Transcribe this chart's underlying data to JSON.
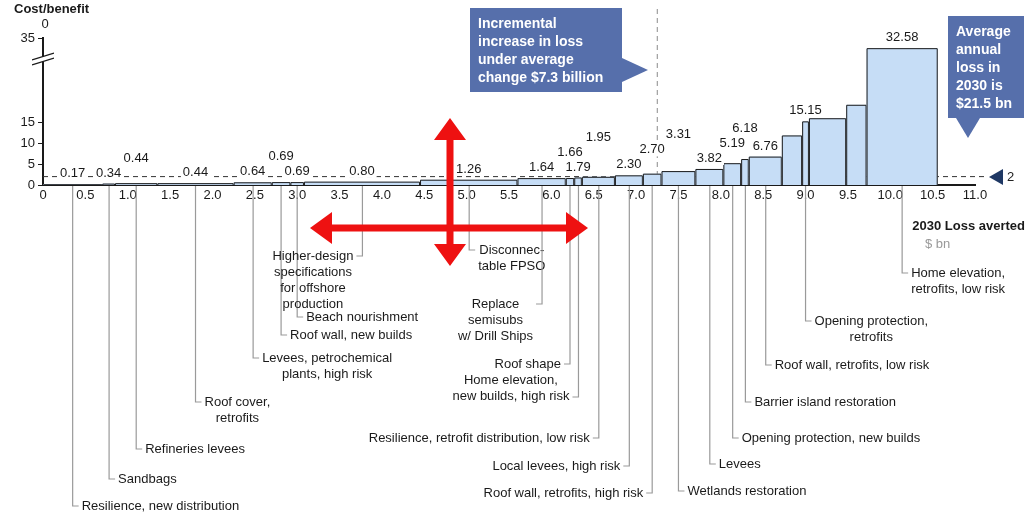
{
  "chart_data": {
    "type": "histogram",
    "ylabel": "Cost/benefit",
    "xlabel": "2030 Loss averted",
    "color": "#c6ddf6",
    "bins": [
      0,
      0.7,
      0.85,
      1.35,
      2.25,
      2.7,
      2.92,
      3.08,
      4.45,
      5.6,
      6.17,
      6.27,
      6.36,
      6.75,
      7.08,
      7.3,
      7.7,
      8.03,
      8.24,
      8.33,
      8.72,
      8.96,
      9.04,
      9.48,
      9.72,
      10.56
    ],
    "values": [
      0.17,
      0.34,
      0.44,
      0.44,
      0.64,
      0.69,
      0.69,
      0.8,
      1.26,
      1.64,
      1.66,
      1.79,
      1.95,
      2.3,
      2.7,
      3.31,
      3.82,
      5.19,
      6.18,
      6.76,
      11.8,
      15.15,
      15.9,
      19.1,
      32.58
    ],
    "value_labels": [
      "0.17",
      "0.34",
      "0.44",
      "0.44",
      "0.64",
      "0.69",
      "0.69",
      "0.80",
      "1.26",
      "1.64",
      "1.66",
      "1.79",
      "1.95",
      "2.30",
      "2.70",
      "3.31",
      "3.82",
      "5.19",
      "6.18",
      "6.76",
      null,
      "15.15",
      null,
      null,
      "32.58"
    ],
    "xlim": [
      0,
      11
    ],
    "xticks": [
      0,
      0.5,
      {
        "value": 1,
        "label": "1.0"
      },
      1.5,
      {
        "value": 2,
        "label": "2.0"
      },
      2.5,
      {
        "value": 3,
        "label": "3.0"
      },
      3.5,
      {
        "value": 4,
        "label": "4.0"
      },
      4.5,
      {
        "value": 5,
        "label": "5.0"
      },
      5.5,
      {
        "value": 6,
        "label": "6.0"
      },
      6.5,
      {
        "value": 7,
        "label": "7.0"
      },
      7.5,
      {
        "value": 8,
        "label": "8.0"
      },
      8.5,
      {
        "value": 9,
        "label": "9.0"
      },
      9.5,
      {
        "value": 10,
        "label": "10.0"
      },
      10.5,
      {
        "value": 11,
        "label": "11.0"
      }
    ],
    "ylim": [
      0,
      35
    ],
    "yticks": [
      0,
      5,
      10,
      15,
      35
    ],
    "ref_lines": [
      {
        "axis": "y",
        "value": 2,
        "label": "2",
        "line_style": "dashed"
      },
      {
        "axis": "x",
        "value": 7.25,
        "line_style": "dashed"
      }
    ],
    "annotations": [
      "Incremental increase in loss under average change $7.3 billion",
      "Average annual loss in 2030 is $21.5 bn",
      "$ bn",
      "0",
      {
        "text": "Resilience, new distribution",
        "x": 0.35,
        "y": 0
      },
      {
        "text": "Sandbags",
        "x": 0.78,
        "y": 0
      },
      {
        "text": "Refineries levees",
        "x": 1.1,
        "y": 0
      },
      {
        "text": "Roof cover,\nretrofits",
        "x": 1.8,
        "y": 0
      },
      {
        "text": "Levees, petrochemical\nplants, high risk",
        "x": 2.48,
        "y": 0
      },
      {
        "text": "Roof wall, new builds",
        "x": 2.81,
        "y": 0
      },
      {
        "text": "Beach nourishment",
        "x": 3.0,
        "y": 0
      },
      {
        "text": "Higher-design\nspecifications\nfor offshore\nproduction",
        "x": 3.77,
        "y": 0
      },
      {
        "text": "Disconnec-\ntable FPSO",
        "x": 5.03,
        "y": 0
      },
      {
        "text": "Replace\nsemisubs\nw/ Drill Ships",
        "x": 5.89,
        "y": 0
      },
      {
        "text": "Roof shape",
        "x": 6.22,
        "y": 0
      },
      {
        "text": "Home elevation,\nnew builds, high risk",
        "x": 6.32,
        "y": 0
      },
      {
        "text": "Resilience, retrofit distribution, low risk",
        "x": 6.56,
        "y": 0
      },
      {
        "text": "Local levees, high risk",
        "x": 6.92,
        "y": 0
      },
      {
        "text": "Roof wall, retrofits, high risk",
        "x": 7.19,
        "y": 0
      },
      {
        "text": "Wetlands restoration",
        "x": 7.5,
        "y": 0
      },
      {
        "text": "Levees",
        "x": 7.87,
        "y": 0
      },
      {
        "text": "Opening protection, new builds",
        "x": 8.14,
        "y": 0
      },
      {
        "text": "Barrier island restoration",
        "x": 8.29,
        "y": 0
      },
      {
        "text": "Roof wall, retrofits, low risk",
        "x": 8.53,
        "y": 0
      },
      {
        "text": "Opening protection,\nretrofits",
        "x": 9.0,
        "y": 0
      },
      {
        "text": "Home elevation,\nretrofits, low risk",
        "x": 10.14,
        "y": 0
      }
    ]
  }
}
